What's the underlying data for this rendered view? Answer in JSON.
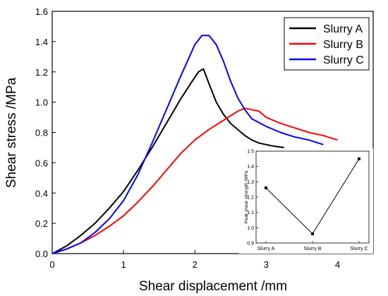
{
  "chart_data": [
    {
      "type": "line",
      "xlabel": "Shear displacement /mm",
      "ylabel": "Shear stress /MPa",
      "xlim": [
        0,
        4.5
      ],
      "ylim": [
        0,
        1.6
      ],
      "xticks": [
        "0",
        "1",
        "2",
        "3",
        "4"
      ],
      "yticks": [
        "0.0",
        "0.2",
        "0.4",
        "0.6",
        "0.8",
        "1.0",
        "1.2",
        "1.4",
        "1.6"
      ],
      "legend_position": "top-right",
      "series": [
        {
          "name": "Slurry A",
          "color": "#000000",
          "x": [
            0,
            0.2,
            0.4,
            0.6,
            0.8,
            1.0,
            1.2,
            1.4,
            1.6,
            1.8,
            1.95,
            2.05,
            2.12,
            2.2,
            2.3,
            2.4,
            2.5,
            2.6,
            2.7,
            2.8,
            2.9,
            3.0,
            3.1,
            3.25
          ],
          "y": [
            0.0,
            0.05,
            0.12,
            0.2,
            0.3,
            0.41,
            0.55,
            0.7,
            0.86,
            1.02,
            1.13,
            1.2,
            1.22,
            1.12,
            1.0,
            0.92,
            0.86,
            0.82,
            0.78,
            0.75,
            0.73,
            0.72,
            0.71,
            0.7
          ]
        },
        {
          "name": "Slurry B",
          "color": "#ff0000",
          "x": [
            0,
            0.2,
            0.4,
            0.6,
            0.8,
            1.0,
            1.2,
            1.4,
            1.6,
            1.8,
            2.0,
            2.2,
            2.4,
            2.6,
            2.7,
            2.8,
            2.9,
            3.0,
            3.2,
            3.4,
            3.6,
            3.8,
            4.0
          ],
          "y": [
            0.0,
            0.03,
            0.07,
            0.12,
            0.18,
            0.25,
            0.34,
            0.44,
            0.55,
            0.66,
            0.75,
            0.82,
            0.88,
            0.94,
            0.96,
            0.95,
            0.94,
            0.9,
            0.86,
            0.83,
            0.8,
            0.78,
            0.75
          ]
        },
        {
          "name": "Slurry C",
          "color": "#0000ff",
          "x": [
            0,
            0.2,
            0.4,
            0.6,
            0.8,
            1.0,
            1.2,
            1.4,
            1.6,
            1.8,
            2.0,
            2.1,
            2.2,
            2.3,
            2.4,
            2.5,
            2.6,
            2.7,
            2.8,
            3.0,
            3.2,
            3.4,
            3.6,
            3.8
          ],
          "y": [
            0.0,
            0.03,
            0.07,
            0.14,
            0.23,
            0.35,
            0.52,
            0.73,
            0.95,
            1.17,
            1.38,
            1.44,
            1.44,
            1.38,
            1.27,
            1.14,
            1.03,
            0.95,
            0.89,
            0.84,
            0.8,
            0.77,
            0.75,
            0.72
          ]
        }
      ]
    },
    {
      "type": "line",
      "ylabel": "Peak shear strength /MPa",
      "categories": [
        "Slurry A",
        "Slurry B",
        "Slurry C"
      ],
      "values": [
        1.26,
        0.96,
        1.45
      ],
      "ylim": [
        0.9,
        1.5
      ],
      "yticks": [
        "0.9",
        "1.0",
        "1.1",
        "1.2",
        "1.3",
        "1.4",
        "1.5"
      ],
      "color": "#000000"
    }
  ]
}
